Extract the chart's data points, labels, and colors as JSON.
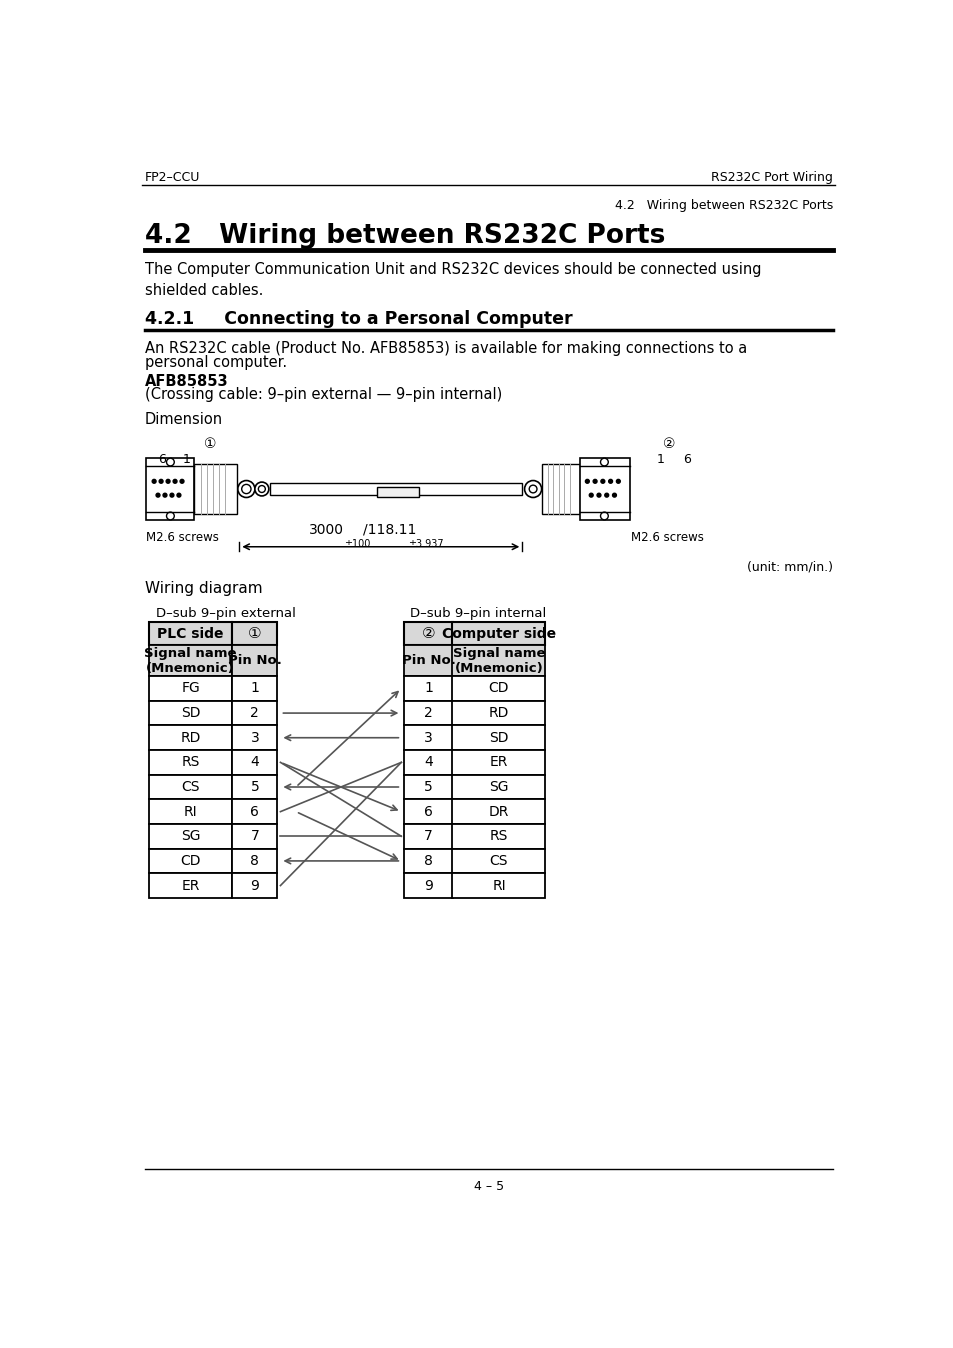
{
  "header_left": "FP2–CCU",
  "header_right": "RS232C Port Wiring",
  "subheader_right": "4.2   Wiring between RS232C Ports",
  "section_title": "4.2   Wiring between RS232C Ports",
  "section_body1": "The Computer Communication Unit and RS232C devices should be connected using\nshielded cables.",
  "subsection_title": "4.2.1     Connecting to a Personal Computer",
  "subsection_body1": "An RS232C cable (Product No. AFB85853) is available for making connections to a",
  "subsection_body2": "personal computer.",
  "product_label": "AFB85853",
  "product_desc": "(Crossing cable: 9–pin external — 9–pin internal)",
  "dimension_label": "Dimension",
  "m26_screws_left": "M2.6 screws",
  "m26_screws_right": "M2.6 screws",
  "unit_text": "(unit: mm/in.)",
  "wiring_label": "Wiring diagram",
  "dsub_external": "D–sub 9–pin external",
  "dsub_internal": "D–sub 9–pin internal",
  "plc_side": "PLC side",
  "computer_side": "Computer side",
  "signal_name_mnemonic": "Signal name\n(Mnemonic)",
  "pin_no_label": "Pin No.",
  "plc_signals": [
    "FG",
    "SD",
    "RD",
    "RS",
    "CS",
    "RI",
    "SG",
    "CD",
    "ER"
  ],
  "plc_pins": [
    "1",
    "2",
    "3",
    "4",
    "5",
    "6",
    "7",
    "8",
    "9"
  ],
  "pc_pins": [
    "1",
    "2",
    "3",
    "4",
    "5",
    "6",
    "7",
    "8",
    "9"
  ],
  "pc_signals": [
    "CD",
    "RD",
    "SD",
    "ER",
    "SG",
    "DR",
    "RS",
    "CS",
    "RI"
  ],
  "page_number": "4 – 5",
  "bg_color": "#ffffff"
}
